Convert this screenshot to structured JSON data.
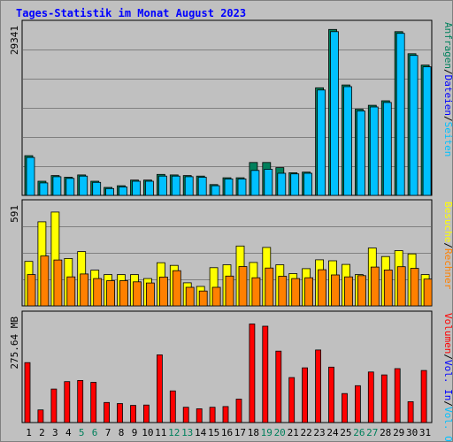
{
  "title": "Tages-Statistik im Monat August 2023",
  "colors": {
    "background": "#C0C0C0",
    "border": "#000000",
    "gridline": "#808080",
    "title": "#0000FF",
    "hits": "#00805C",
    "files": "#0000FF",
    "pages": "#00C0FF",
    "visits": "#FFFF00",
    "sites": "#FF8000",
    "kbytes": "#FF0000",
    "weekend_label": "#00805C",
    "weekday_label": "#000000"
  },
  "chart_data": [
    {
      "type": "bar",
      "panel": "top",
      "y_max_label": "29341",
      "ylim": [
        0,
        29341
      ],
      "grid": true,
      "legend": [
        "Anfragen",
        "Dateien",
        "Seiten"
      ],
      "legend_placement": "right",
      "categories": [
        "1",
        "2",
        "3",
        "4",
        "5",
        "6",
        "7",
        "8",
        "9",
        "10",
        "11",
        "12",
        "13",
        "14",
        "15",
        "16",
        "17",
        "18",
        "19",
        "20",
        "21",
        "22",
        "23",
        "24",
        "25",
        "26",
        "27",
        "28",
        "29",
        "30",
        "31"
      ],
      "series": [
        {
          "name": "Anfragen",
          "values": [
            7000,
            2500,
            3500,
            3200,
            3600,
            2500,
            1400,
            1700,
            2700,
            2700,
            3700,
            3600,
            3500,
            3400,
            1900,
            3100,
            3100,
            5800,
            5800,
            4900,
            4000,
            4100,
            19000,
            29300,
            19500,
            15200,
            15900,
            16700,
            28900,
            25000,
            23000
          ]
        },
        {
          "name": "Seiten",
          "values": [
            6700,
            2200,
            3300,
            3000,
            3400,
            2300,
            1200,
            1500,
            2500,
            2500,
            3400,
            3400,
            3300,
            3200,
            1700,
            2900,
            2900,
            4400,
            4600,
            3900,
            3800,
            3900,
            18600,
            28900,
            19200,
            14900,
            15600,
            16400,
            28600,
            24700,
            22700
          ]
        }
      ]
    },
    {
      "type": "bar",
      "panel": "middle",
      "y_max_label": "591",
      "ylim": [
        0,
        591
      ],
      "grid": true,
      "legend": [
        "Besuche",
        "Rechner"
      ],
      "legend_placement": "right",
      "categories": [
        "1",
        "2",
        "3",
        "4",
        "5",
        "6",
        "7",
        "8",
        "9",
        "10",
        "11",
        "12",
        "13",
        "14",
        "15",
        "16",
        "17",
        "18",
        "19",
        "20",
        "21",
        "22",
        "23",
        "24",
        "25",
        "26",
        "27",
        "28",
        "29",
        "30",
        "31"
      ],
      "series": [
        {
          "name": "Besuche",
          "values": [
            270,
            511,
            570,
            288,
            330,
            217,
            190,
            190,
            190,
            166,
            262,
            246,
            140,
            118,
            232,
            250,
            364,
            264,
            355,
            250,
            196,
            226,
            280,
            274,
            252,
            190,
            352,
            300,
            336,
            316,
            190
          ]
        },
        {
          "name": "Rechner",
          "values": [
            190,
            303,
            279,
            176,
            194,
            166,
            153,
            153,
            146,
            139,
            175,
            214,
            113,
            90,
            113,
            181,
            239,
            171,
            230,
            180,
            166,
            171,
            220,
            188,
            176,
            184,
            236,
            218,
            238,
            228,
            163
          ]
        }
      ]
    },
    {
      "type": "bar",
      "panel": "bottom",
      "y_max_label": "275.64 MB",
      "ylim": [
        0,
        275.64
      ],
      "grid": false,
      "legend": [
        "Volumen",
        "Vol. In",
        "Vol. Out"
      ],
      "legend_placement": "right",
      "categories": [
        "1",
        "2",
        "3",
        "4",
        "5",
        "6",
        "7",
        "8",
        "9",
        "10",
        "11",
        "12",
        "13",
        "14",
        "15",
        "16",
        "17",
        "18",
        "19",
        "20",
        "21",
        "22",
        "23",
        "24",
        "25",
        "26",
        "27",
        "28",
        "29",
        "30",
        "31"
      ],
      "weekend_days": [
        "5",
        "6",
        "12",
        "13",
        "19",
        "20",
        "26",
        "27"
      ],
      "series": [
        {
          "name": "Volumen",
          "values": [
            161,
            34,
            90,
            110,
            113,
            108,
            54,
            51,
            46,
            47,
            182,
            85,
            41,
            37,
            41,
            43,
            63,
            265,
            259,
            192,
            121,
            147,
            195,
            149,
            78,
            99,
            136,
            128,
            145,
            56,
            140
          ]
        }
      ]
    }
  ]
}
